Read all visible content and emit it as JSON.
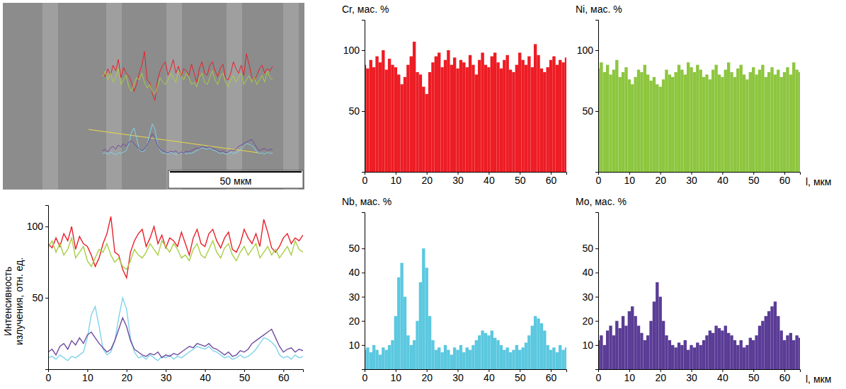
{
  "image": {
    "scale_bar": "50 мкм"
  },
  "chart_data": [
    {
      "type": "line",
      "ylabel": "Интенсивность излучения, отн. ед.",
      "x": [
        0,
        1,
        2,
        3,
        4,
        5,
        6,
        7,
        8,
        9,
        10,
        11,
        12,
        13,
        14,
        15,
        16,
        17,
        18,
        19,
        20,
        21,
        22,
        23,
        24,
        25,
        26,
        27,
        28,
        29,
        30,
        31,
        32,
        33,
        34,
        35,
        36,
        37,
        38,
        39,
        40,
        41,
        42,
        43,
        44,
        45,
        46,
        47,
        48,
        49,
        50,
        51,
        52,
        53,
        54,
        55,
        56,
        57,
        58,
        59,
        60,
        61,
        62,
        63,
        64,
        65
      ],
      "series": [
        {
          "color": "#e8202a",
          "values": [
            88,
            85,
            92,
            86,
            95,
            90,
            100,
            84,
            93,
            88,
            86,
            80,
            72,
            78,
            88,
            95,
            107,
            82,
            80,
            70,
            64,
            82,
            90,
            95,
            98,
            86,
            92,
            100,
            88,
            94,
            85,
            92,
            90,
            86,
            96,
            88,
            80,
            92,
            98,
            88,
            86,
            95,
            98,
            90,
            85,
            92,
            96,
            84,
            82,
            88,
            98,
            92,
            88,
            95,
            86,
            105,
            96,
            85,
            82,
            86,
            92,
            95,
            88,
            92,
            90,
            94
          ]
        },
        {
          "color": "#a8cf45",
          "values": [
            85,
            90,
            82,
            88,
            80,
            84,
            92,
            78,
            82,
            86,
            76,
            72,
            78,
            84,
            82,
            88,
            80,
            75,
            78,
            72,
            70,
            76,
            84,
            80,
            78,
            82,
            88,
            84,
            80,
            90,
            86,
            82,
            88,
            84,
            78,
            80,
            76,
            84,
            88,
            80,
            78,
            84,
            90,
            82,
            78,
            85,
            88,
            80,
            76,
            82,
            86,
            80,
            84,
            88,
            78,
            82,
            86,
            80,
            84,
            78,
            82,
            86,
            80,
            90,
            84,
            82
          ]
        },
        {
          "color": "#7fd3ea",
          "values": [
            8,
            9,
            7,
            10,
            8,
            6,
            9,
            8,
            10,
            12,
            22,
            38,
            44,
            30,
            14,
            10,
            12,
            20,
            36,
            50,
            42,
            22,
            12,
            8,
            9,
            7,
            10,
            8,
            6,
            9,
            8,
            10,
            7,
            9,
            8,
            10,
            12,
            14,
            16,
            15,
            14,
            16,
            13,
            12,
            10,
            8,
            9,
            7,
            8,
            10,
            8,
            9,
            11,
            14,
            18,
            22,
            21,
            19,
            16,
            10,
            8,
            9,
            7,
            10,
            8,
            9
          ]
        },
        {
          "color": "#6f4ba0",
          "values": [
            12,
            14,
            10,
            16,
            18,
            14,
            20,
            17,
            22,
            18,
            24,
            26,
            22,
            18,
            15,
            12,
            14,
            20,
            28,
            36,
            30,
            20,
            14,
            12,
            10,
            9,
            11,
            10,
            12,
            8,
            10,
            9,
            11,
            10,
            12,
            14,
            16,
            15,
            18,
            17,
            16,
            18,
            15,
            14,
            12,
            10,
            12,
            9,
            10,
            13,
            12,
            14,
            18,
            20,
            22,
            24,
            26,
            28,
            22,
            16,
            12,
            14,
            15,
            12,
            14,
            13
          ]
        }
      ],
      "xlim": [
        0,
        65
      ],
      "xticks": [
        0,
        10,
        20,
        30,
        40,
        50,
        60
      ],
      "ylim": [
        0,
        115
      ],
      "yticks": [
        50,
        100
      ]
    },
    {
      "type": "bar",
      "title": "Cr, мас. %",
      "color": "#ed1c24",
      "x": [
        0,
        1,
        2,
        3,
        4,
        5,
        6,
        7,
        8,
        9,
        10,
        11,
        12,
        13,
        14,
        15,
        16,
        17,
        18,
        19,
        20,
        21,
        22,
        23,
        24,
        25,
        26,
        27,
        28,
        29,
        30,
        31,
        32,
        33,
        34,
        35,
        36,
        37,
        38,
        39,
        40,
        41,
        42,
        43,
        44,
        45,
        46,
        47,
        48,
        49,
        50,
        51,
        52,
        53,
        54,
        55,
        56,
        57,
        58,
        59,
        60,
        61,
        62,
        63,
        64,
        65
      ],
      "values": [
        88,
        85,
        92,
        86,
        95,
        90,
        100,
        84,
        93,
        88,
        86,
        80,
        72,
        78,
        88,
        95,
        107,
        82,
        80,
        70,
        64,
        82,
        90,
        95,
        98,
        86,
        92,
        100,
        88,
        94,
        85,
        92,
        90,
        86,
        96,
        88,
        80,
        92,
        98,
        88,
        86,
        95,
        98,
        90,
        85,
        92,
        96,
        84,
        82,
        88,
        98,
        92,
        88,
        95,
        86,
        105,
        96,
        85,
        82,
        86,
        92,
        95,
        88,
        92,
        90,
        94
      ],
      "xlim": [
        0,
        65
      ],
      "xticks": [
        0,
        10,
        20,
        30,
        40,
        50,
        60
      ],
      "ylim": [
        0,
        125
      ],
      "yticks": [
        50,
        100
      ]
    },
    {
      "type": "bar",
      "title": "Ni, мас. %",
      "xlabel": "l, мкм",
      "color": "#8dc63f",
      "x": [
        0,
        1,
        2,
        3,
        4,
        5,
        6,
        7,
        8,
        9,
        10,
        11,
        12,
        13,
        14,
        15,
        16,
        17,
        18,
        19,
        20,
        21,
        22,
        23,
        24,
        25,
        26,
        27,
        28,
        29,
        30,
        31,
        32,
        33,
        34,
        35,
        36,
        37,
        38,
        39,
        40,
        41,
        42,
        43,
        44,
        45,
        46,
        47,
        48,
        49,
        50,
        51,
        52,
        53,
        54,
        55,
        56,
        57,
        58,
        59,
        60,
        61,
        62,
        63,
        64,
        65
      ],
      "values": [
        85,
        90,
        82,
        88,
        80,
        84,
        92,
        78,
        82,
        86,
        76,
        72,
        78,
        84,
        82,
        88,
        80,
        75,
        78,
        72,
        70,
        76,
        84,
        80,
        78,
        82,
        88,
        84,
        80,
        90,
        86,
        82,
        88,
        84,
        78,
        80,
        76,
        84,
        88,
        80,
        78,
        84,
        90,
        82,
        78,
        85,
        88,
        80,
        76,
        82,
        86,
        80,
        84,
        88,
        78,
        82,
        86,
        80,
        84,
        78,
        82,
        86,
        80,
        90,
        84,
        82
      ],
      "xlim": [
        0,
        65
      ],
      "xticks": [
        0,
        10,
        20,
        30,
        40,
        50,
        60
      ],
      "ylim": [
        0,
        125
      ],
      "yticks": [
        50,
        100
      ]
    },
    {
      "type": "bar",
      "title": "Nb, мас. %",
      "color": "#5bc8e0",
      "x": [
        0,
        1,
        2,
        3,
        4,
        5,
        6,
        7,
        8,
        9,
        10,
        11,
        12,
        13,
        14,
        15,
        16,
        17,
        18,
        19,
        20,
        21,
        22,
        23,
        24,
        25,
        26,
        27,
        28,
        29,
        30,
        31,
        32,
        33,
        34,
        35,
        36,
        37,
        38,
        39,
        40,
        41,
        42,
        43,
        44,
        45,
        46,
        47,
        48,
        49,
        50,
        51,
        52,
        53,
        54,
        55,
        56,
        57,
        58,
        59,
        60,
        61,
        62,
        63,
        64,
        65
      ],
      "values": [
        8,
        9,
        7,
        10,
        8,
        6,
        9,
        8,
        10,
        12,
        22,
        38,
        44,
        30,
        14,
        10,
        12,
        20,
        36,
        50,
        42,
        22,
        12,
        8,
        9,
        7,
        10,
        8,
        6,
        9,
        8,
        10,
        7,
        9,
        8,
        10,
        12,
        14,
        16,
        15,
        14,
        16,
        13,
        12,
        10,
        8,
        9,
        7,
        8,
        10,
        8,
        9,
        11,
        14,
        18,
        22,
        21,
        19,
        16,
        10,
        8,
        9,
        7,
        10,
        8,
        9
      ],
      "xlim": [
        0,
        65
      ],
      "xticks": [
        0,
        10,
        20,
        30,
        40,
        50,
        60
      ],
      "ylim": [
        0,
        65
      ],
      "yticks": [
        10,
        20,
        30,
        40,
        50
      ]
    },
    {
      "type": "bar",
      "title": "Mo, мас. %",
      "xlabel": "l, мкм",
      "color": "#5a3c96",
      "x": [
        0,
        1,
        2,
        3,
        4,
        5,
        6,
        7,
        8,
        9,
        10,
        11,
        12,
        13,
        14,
        15,
        16,
        17,
        18,
        19,
        20,
        21,
        22,
        23,
        24,
        25,
        26,
        27,
        28,
        29,
        30,
        31,
        32,
        33,
        34,
        35,
        36,
        37,
        38,
        39,
        40,
        41,
        42,
        43,
        44,
        45,
        46,
        47,
        48,
        49,
        50,
        51,
        52,
        53,
        54,
        55,
        56,
        57,
        58,
        59,
        60,
        61,
        62,
        63,
        64,
        65
      ],
      "values": [
        12,
        14,
        10,
        16,
        18,
        14,
        20,
        17,
        22,
        18,
        24,
        26,
        22,
        18,
        15,
        12,
        14,
        20,
        28,
        36,
        30,
        20,
        14,
        12,
        10,
        9,
        11,
        10,
        12,
        8,
        10,
        9,
        11,
        10,
        12,
        14,
        16,
        15,
        18,
        17,
        16,
        18,
        15,
        14,
        12,
        10,
        12,
        9,
        10,
        13,
        12,
        14,
        18,
        20,
        22,
        24,
        26,
        28,
        22,
        16,
        12,
        14,
        15,
        12,
        14,
        13
      ],
      "xlim": [
        0,
        65
      ],
      "xticks": [
        0,
        10,
        20,
        30,
        40,
        50,
        60
      ],
      "ylim": [
        0,
        65
      ],
      "yticks": [
        10,
        20,
        30,
        40,
        50
      ]
    }
  ]
}
